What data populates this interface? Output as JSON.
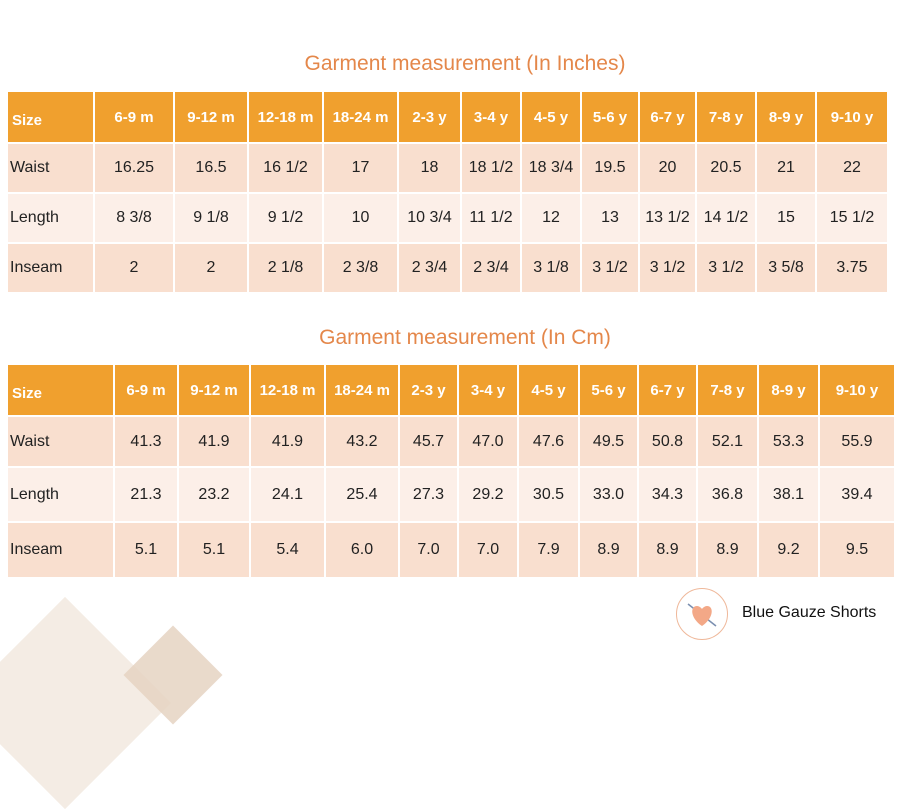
{
  "tables": [
    {
      "title": "Garment measurement (In Inches)",
      "headers": [
        "Size",
        "6-9 m",
        "9-12 m",
        "12-18 m",
        "18-24 m",
        "2-3 y",
        "3-4 y",
        "4-5 y",
        "5-6 y",
        "6-7 y",
        "7-8 y",
        "8-9 y",
        "9-10 y"
      ],
      "rows": [
        [
          "Waist",
          "16.25",
          "16.5",
          "16 1/2",
          "17",
          "18",
          "18 1/2",
          "18 3/4",
          "19.5",
          "20",
          "20.5",
          "21",
          "22"
        ],
        [
          "Length",
          "8 3/8",
          "9 1/8",
          "9 1/2",
          "10",
          "10 3/4",
          "11 1/2",
          "12",
          "13",
          "13 1/2",
          "14 1/2",
          "15",
          "15 1/2"
        ],
        [
          "Inseam",
          "2",
          "2",
          "2 1/8",
          "2 3/8",
          "2 3/4",
          "2 3/4",
          "3 1/8",
          "3 1/2",
          "3 1/2",
          "3 1/2",
          "3 5/8",
          "3.75"
        ]
      ]
    },
    {
      "title": "Garment measurement (In Cm)",
      "headers": [
        "Size",
        "6-9 m",
        "9-12 m",
        "12-18 m",
        "18-24 m",
        "2-3 y",
        "3-4 y",
        "4-5 y",
        "5-6 y",
        "6-7 y",
        "7-8 y",
        "8-9 y",
        "9-10 y"
      ],
      "rows": [
        [
          "Waist",
          "41.3",
          "41.9",
          "41.9",
          "43.2",
          "45.7",
          "47.0",
          "47.6",
          "49.5",
          "50.8",
          "52.1",
          "53.3",
          "55.9"
        ],
        [
          "Length",
          "21.3",
          "23.2",
          "24.1",
          "25.4",
          "27.3",
          "29.2",
          "30.5",
          "33.0",
          "34.3",
          "36.8",
          "38.1",
          "39.4"
        ],
        [
          "Inseam",
          "5.1",
          "5.1",
          "5.4",
          "6.0",
          "7.0",
          "7.0",
          "7.9",
          "8.9",
          "8.9",
          "8.9",
          "9.2",
          "9.5"
        ]
      ]
    }
  ],
  "brand": {
    "name": "Blue Gauze Shorts",
    "logo_icon": "heart-logo-icon"
  },
  "colors": {
    "header": "#f0a02e",
    "title": "#e4874a",
    "row_dark": "#f9dfcf",
    "row_light": "#fcefe8"
  }
}
